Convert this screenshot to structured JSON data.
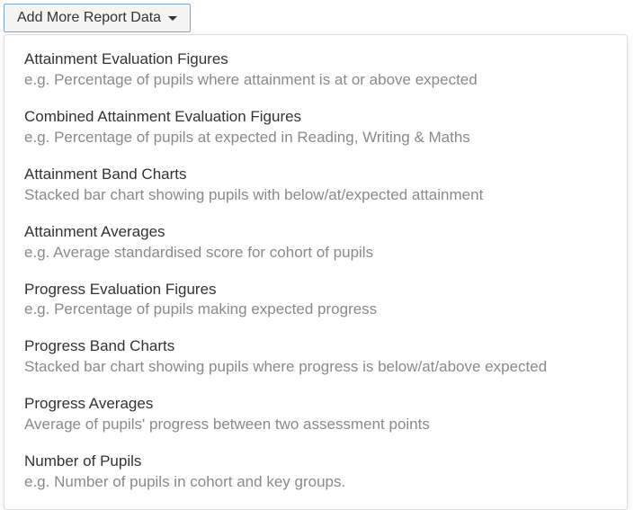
{
  "button": {
    "label": "Add More Report Data"
  },
  "colors": {
    "button_bg": "#f4f4f4",
    "button_border": "#7aa7d8",
    "button_text": "#333333",
    "menu_bg": "#ffffff",
    "menu_border": "#dcdcdc",
    "title_color": "#333333",
    "desc_color": "#8a8a8a"
  },
  "typography": {
    "font_family": "Helvetica Neue, Helvetica, Arial, sans-serif",
    "button_fontsize": 16,
    "item_fontsize": 17
  },
  "menu": {
    "items": [
      {
        "title": "Attainment Evaluation Figures",
        "desc": "e.g. Percentage of pupils where attainment is at or above expected"
      },
      {
        "title": "Combined Attainment Evaluation Figures",
        "desc": "e.g. Percentage of pupils at expected in Reading, Writing & Maths"
      },
      {
        "title": "Attainment Band Charts",
        "desc": "Stacked bar chart showing pupils with below/at/expected attainment"
      },
      {
        "title": "Attainment Averages",
        "desc": "e.g. Average standardised score for cohort of pupils"
      },
      {
        "title": "Progress Evaluation Figures",
        "desc": "e.g. Percentage of pupils making expected progress"
      },
      {
        "title": "Progress Band Charts",
        "desc": "Stacked bar chart showing pupils where progress is below/at/above expected"
      },
      {
        "title": "Progress Averages",
        "desc": "Average of pupils' progress between two assessment points"
      },
      {
        "title": "Number of Pupils",
        "desc": "e.g. Number of pupils in cohort and key groups."
      }
    ]
  }
}
